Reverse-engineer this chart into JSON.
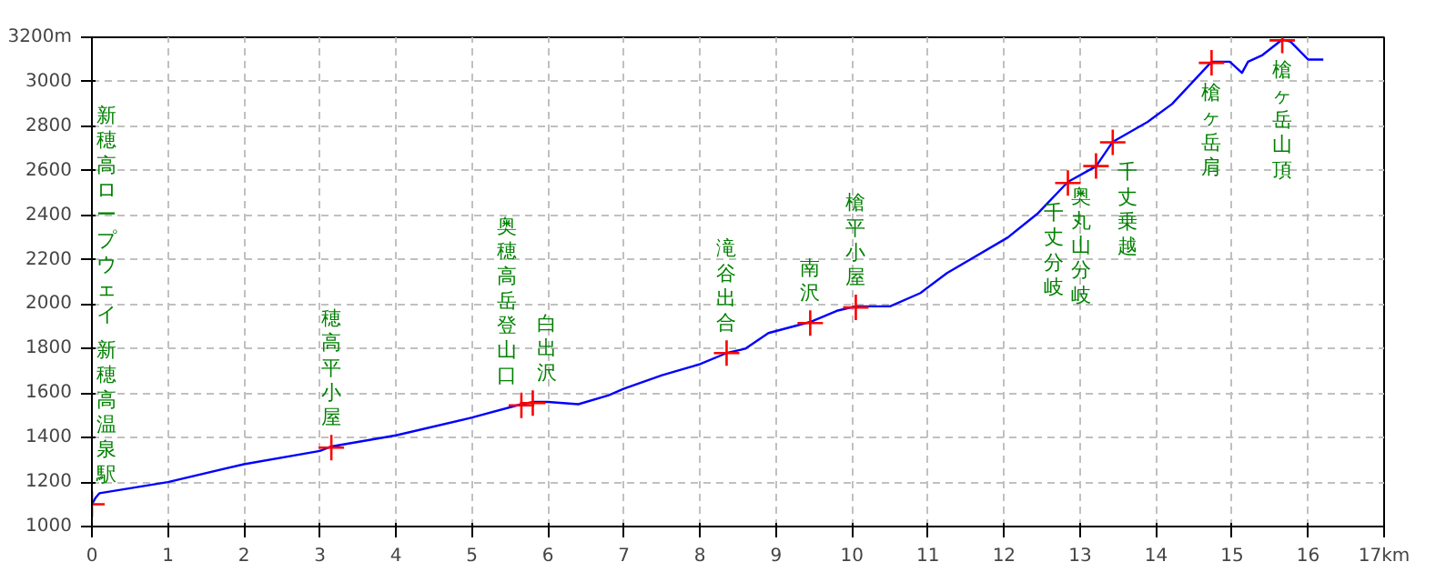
{
  "chart_data": {
    "type": "line",
    "x": [
      0,
      0.05,
      0.1,
      1,
      2,
      3,
      3.15,
      4,
      5,
      5.65,
      5.8,
      6,
      6.4,
      6.8,
      7,
      7.5,
      8,
      8.35,
      8.6,
      8.9,
      9.45,
      9.8,
      10.05,
      10.5,
      10.9,
      11.25,
      12.05,
      12.45,
      12.84,
      13.21,
      13.43,
      13.89,
      14.21,
      14.73,
      14.97,
      15.13,
      15.21,
      15.4,
      15.66,
      15.77,
      16.0,
      16.2
    ],
    "series": [
      {
        "color": "#0000ff",
        "values": [
          1100,
          1130,
          1150,
          1200,
          1280,
          1340,
          1360,
          1410,
          1490,
          1550,
          1560,
          1560,
          1550,
          1590,
          1620,
          1680,
          1730,
          1780,
          1800,
          1870,
          1920,
          1970,
          1990,
          1990,
          2050,
          2140,
          2300,
          2410,
          2550,
          2620,
          2730,
          2820,
          2900,
          3090,
          3090,
          3040,
          3090,
          3120,
          3190,
          3180,
          3100,
          3100
        ]
      }
    ],
    "xlim": [
      0,
      17
    ],
    "ylim": [
      1000,
      3200
    ],
    "xticks": [
      0,
      1,
      2,
      3,
      4,
      5,
      6,
      7,
      8,
      9,
      10,
      11,
      12,
      13,
      14,
      15,
      16,
      {
        "value": 17,
        "label": "17km"
      }
    ],
    "yticks": [
      1000,
      1200,
      1400,
      1600,
      1800,
      2000,
      2200,
      2400,
      2600,
      2800,
      3000,
      {
        "value": 3200,
        "label": "3200m"
      }
    ],
    "grid": true,
    "marker": "none",
    "line_style": "solid",
    "annotations": [
      {
        "text": "新穂高温泉駅",
        "x": 0,
        "y": 1100
      },
      "新穂高ロープウェイ",
      {
        "text": "穂高平小屋",
        "x": 3.15,
        "y": 1355
      },
      {
        "text": "奥穂高岳登山口",
        "x": 5.65,
        "y": 1545
      },
      {
        "text": "白出沢",
        "x": 5.8,
        "y": 1555
      },
      {
        "text": "滝谷出合",
        "x": 8.35,
        "y": 1780
      },
      {
        "text": "南沢",
        "x": 9.45,
        "y": 1915
      },
      {
        "text": "槍平小屋",
        "x": 10.05,
        "y": 1985
      },
      {
        "text": "千丈分岐",
        "x": 12.84,
        "y": 2545
      },
      {
        "text": "奥丸山分岐",
        "x": 13.21,
        "y": 2621
      },
      {
        "text": "千丈乗越",
        "x": 13.43,
        "y": 2728
      },
      {
        "text": "槍ヶ岳肩",
        "x": 14.73,
        "y": 3085
      },
      {
        "text": "槍ヶ岳山頂",
        "x": 15.66,
        "y": 3186
      }
    ]
  }
}
